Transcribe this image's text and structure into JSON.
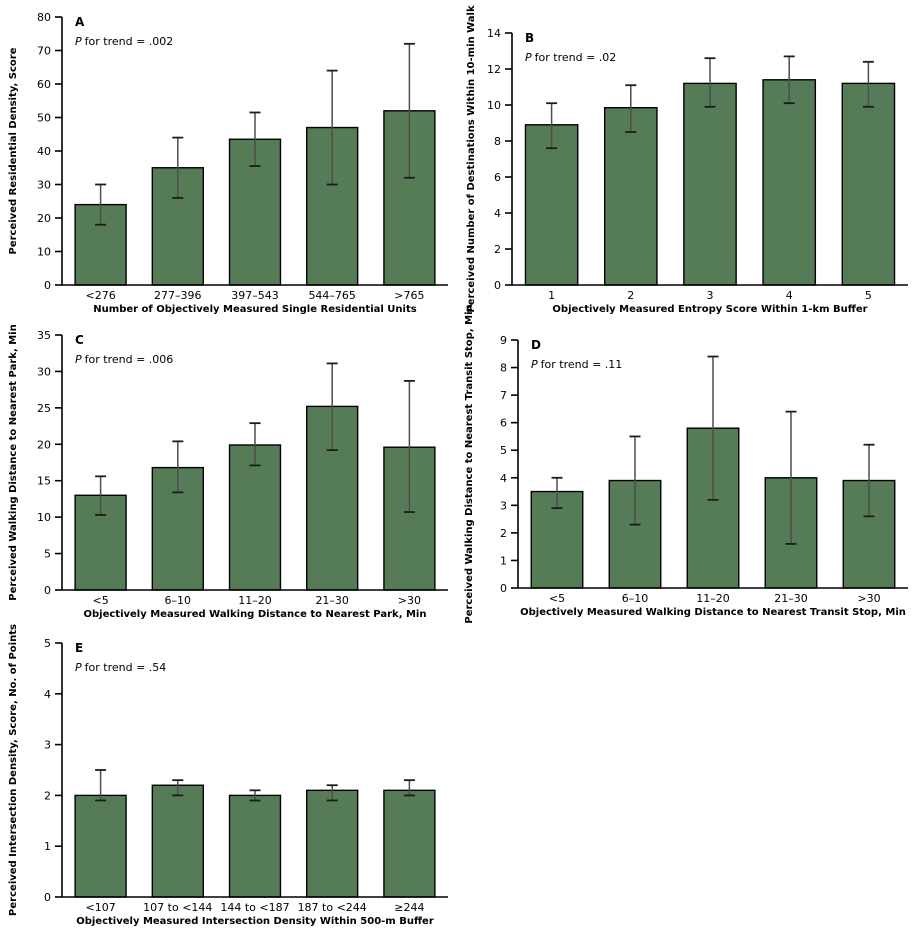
{
  "figure": {
    "background": "#ffffff",
    "bar_fill": "#567C57",
    "bar_border": "#000000",
    "error_shaft_color": "#4d4d4d",
    "error_cap_color": "#1c1c1c",
    "axis_color": "#000000",
    "text_color": "#000000"
  },
  "chart_data": [
    {
      "type": "bar",
      "panel_label": "A",
      "p_label_italic": "P",
      "p_label_rest": "for trend = .002",
      "ylabel": "Perceived Residential Density, Score",
      "xlabel": "Number of Objectively Measured Single Residential Units",
      "categories": [
        "<276",
        "277–396",
        "397–543",
        "544–765",
        ">765"
      ],
      "values": [
        24,
        35,
        43.5,
        47,
        52
      ],
      "err_low": [
        18,
        26,
        35.5,
        30,
        32
      ],
      "err_high": [
        30,
        44,
        51.5,
        64,
        72
      ],
      "ylim": [
        0,
        80
      ],
      "ytick_step": 10,
      "grid": false,
      "legend": null
    },
    {
      "type": "bar",
      "panel_label": "B",
      "p_label_italic": "P",
      "p_label_rest": "for trend = .02",
      "ylabel": "Perceived Number of Destinations Within 10-min Walk",
      "xlabel": "Objectively Measured Entropy Score Within 1-km Buffer",
      "categories": [
        "1",
        "2",
        "3",
        "4",
        "5"
      ],
      "values": [
        8.9,
        9.85,
        11.2,
        11.4,
        11.2
      ],
      "err_low": [
        7.6,
        8.5,
        9.9,
        10.1,
        9.9
      ],
      "err_high": [
        10.1,
        11.1,
        12.6,
        12.7,
        12.4
      ],
      "ylim": [
        0,
        14
      ],
      "ytick_step": 2,
      "grid": false,
      "legend": null
    },
    {
      "type": "bar",
      "panel_label": "C",
      "p_label_italic": "P",
      "p_label_rest": "for trend = .006",
      "ylabel": "Perceived Walking Distance to Nearest Park, Min",
      "xlabel": "Objectively Measured Walking Distance to Nearest Park, Min",
      "categories": [
        "<5",
        "6–10",
        "11–20",
        "21–30",
        ">30"
      ],
      "values": [
        13,
        16.8,
        19.9,
        25.2,
        19.6
      ],
      "err_low": [
        10.3,
        13.4,
        17.1,
        19.2,
        10.7
      ],
      "err_high": [
        15.6,
        20.4,
        22.9,
        31.1,
        28.7
      ],
      "ylim": [
        0,
        35
      ],
      "ytick_step": 5,
      "grid": false,
      "legend": null
    },
    {
      "type": "bar",
      "panel_label": "D",
      "p_label_italic": "P",
      "p_label_rest": "for trend = .11",
      "ylabel": "Perceived Walking Distance to Nearest Transit Stop, Min",
      "xlabel": "Objectively Measured Walking Distance to Nearest Transit Stop, Min",
      "categories": [
        "<5",
        "6–10",
        "11–20",
        "21–30",
        ">30"
      ],
      "values": [
        3.5,
        3.9,
        5.8,
        4.0,
        3.9
      ],
      "err_low": [
        2.9,
        2.3,
        3.2,
        1.6,
        2.6
      ],
      "err_high": [
        4.0,
        5.5,
        8.4,
        6.4,
        5.2
      ],
      "ylim": [
        0,
        9
      ],
      "ytick_step": 1,
      "grid": false,
      "legend": null
    },
    {
      "type": "bar",
      "panel_label": "E",
      "p_label_italic": "P",
      "p_label_rest": "for trend = .54",
      "ylabel": "Perceived Intersection Density, Score, No. of Points",
      "xlabel": "Objectively Measured Intersection Density Within 500-m Buffer",
      "categories": [
        "<107",
        "107 to <144",
        "144 to <187",
        "187 to <244",
        "≥244"
      ],
      "values": [
        2.0,
        2.2,
        2.0,
        2.1,
        2.1
      ],
      "err_low": [
        1.9,
        2.0,
        1.9,
        1.9,
        2.0
      ],
      "err_high": [
        2.5,
        2.3,
        2.1,
        2.2,
        2.3
      ],
      "ylim": [
        0,
        5
      ],
      "ytick_step": 1,
      "grid": false,
      "legend": null
    }
  ]
}
